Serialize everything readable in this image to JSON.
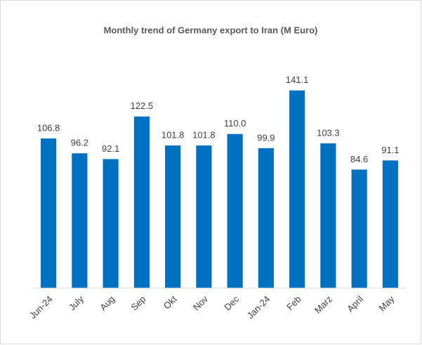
{
  "chart_data": {
    "type": "bar",
    "title": "Monthly trend of Germany export to Iran (M Euro)",
    "categories": [
      "Jun-24",
      "July",
      "Aug",
      "Sep",
      "Okt",
      "Nov",
      "Dec",
      "Jan-24",
      "Feb",
      "Marz",
      "April",
      "May"
    ],
    "values": [
      106.8,
      96.2,
      92.1,
      122.5,
      101.8,
      101.8,
      110.0,
      99.9,
      141.1,
      103.3,
      84.6,
      91.1
    ],
    "value_labels": [
      "106.8",
      "96.2",
      "92.1",
      "122.5",
      "101.8",
      "101.8",
      "110.0",
      "99.9",
      "141.1",
      "103.3",
      "84.6",
      "91.1"
    ],
    "color": "#0070c0",
    "ylim": [
      0,
      160
    ]
  }
}
